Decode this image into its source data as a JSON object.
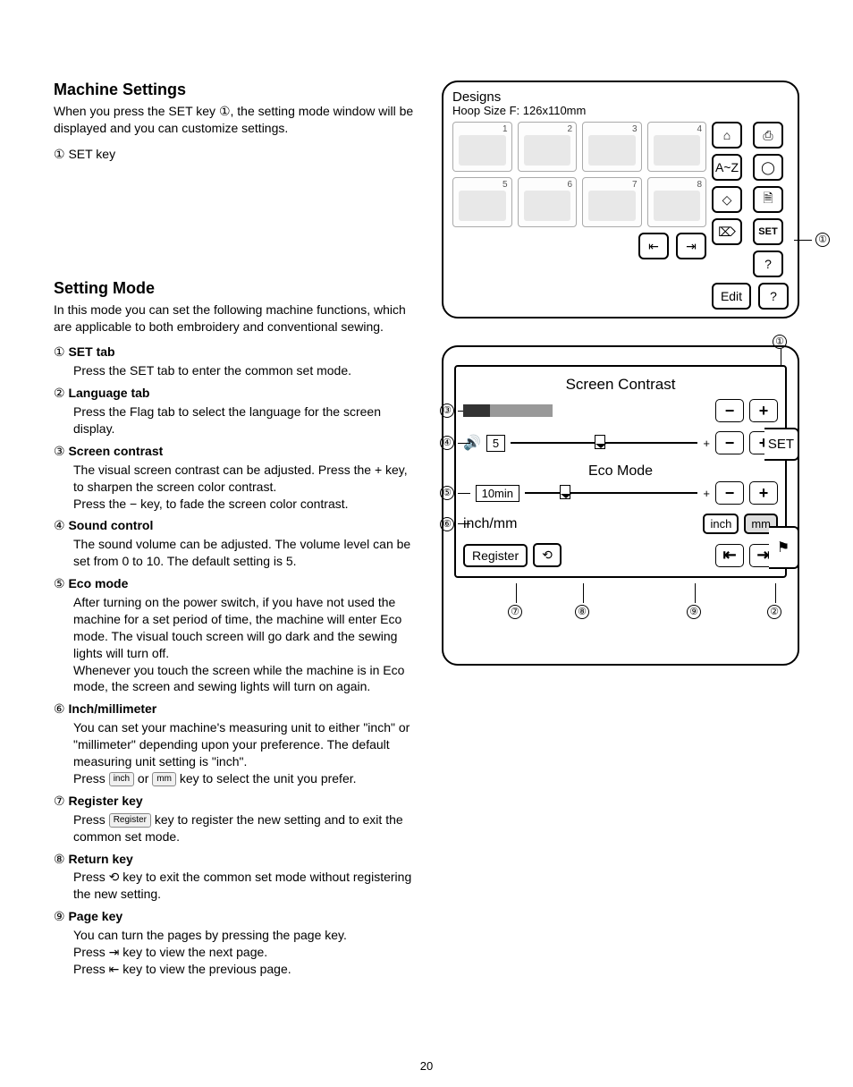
{
  "page_number": "20",
  "machine_settings": {
    "heading": "Machine Settings",
    "intro": "When you press the SET key ①, the setting mode window will be displayed and you can customize settings.",
    "key_label": "① SET key"
  },
  "setting_mode": {
    "heading": "Setting Mode",
    "intro": "In this mode you can set the following machine functions, which are applicable to both embroidery and conventional sewing.",
    "items": [
      {
        "n": "①",
        "title": "SET tab",
        "body": "Press the SET tab to enter the common set mode."
      },
      {
        "n": "②",
        "title": "Language tab",
        "body": "Press the Flag tab to select the language for the screen display."
      },
      {
        "n": "③",
        "title": "Screen contrast",
        "body": "The visual screen contrast can be adjusted. Press the + key, to sharpen the screen color contrast.\nPress the − key, to fade the screen color contrast."
      },
      {
        "n": "④",
        "title": "Sound control",
        "body": "The sound volume can be adjusted. The volume level can be set from 0 to 10. The default setting is 5."
      },
      {
        "n": "⑤",
        "title": "Eco mode",
        "body": "After turning on the power switch, if you have not used the machine for a set period of time, the machine will enter Eco mode. The visual touch screen will go dark and the sewing lights will turn off.\nWhenever you touch the screen while the machine is in Eco mode, the screen and sewing lights will turn on again."
      },
      {
        "n": "⑥",
        "title": "Inch/millimeter",
        "body": "You can set your machine's measuring unit to either \"inch\" or \"millimeter\" depending upon your preference. The default measuring unit setting is \"inch\".\nPress inch or mm key to select the unit you prefer."
      },
      {
        "n": "⑦",
        "title": "Register key",
        "body": "Press Register key to register the new setting and to exit the common set mode."
      },
      {
        "n": "⑧",
        "title": "Return key",
        "body": "Press ⟲ key to exit the common set mode without registering the new setting."
      },
      {
        "n": "⑨",
        "title": "Page key",
        "body": "You can turn the pages by pressing the page key.\nPress ⇥ key to view the next page.\nPress ⇤ key to view the previous page."
      }
    ]
  },
  "designs_panel": {
    "title": "Designs",
    "hoop": "Hoop Size F: 126x110mm",
    "cells": [
      "1",
      "2",
      "3",
      "4",
      "5",
      "6",
      "7",
      "8"
    ],
    "side1": [
      "⌂",
      "A~Z",
      "◇",
      "⌦"
    ],
    "side2": [
      "⎙",
      "◯",
      "🗎",
      "SET",
      "?"
    ],
    "nav_prev": "⇤",
    "nav_next": "⇥",
    "edit": "Edit",
    "callout": "①"
  },
  "screen_panel": {
    "title": "Screen Contrast",
    "sound_val": "5",
    "eco_title": "Eco Mode",
    "eco_val": "10min",
    "unit_label": "inch/mm",
    "unit_inch": "inch",
    "unit_mm": "mm",
    "register": "Register",
    "set_tab": "SET",
    "callouts": {
      "top": "①",
      "c3": "③",
      "c4": "④",
      "c5": "⑤",
      "c6": "⑥",
      "c7": "⑦",
      "c8": "⑧",
      "c9": "⑨",
      "c2": "②"
    }
  }
}
